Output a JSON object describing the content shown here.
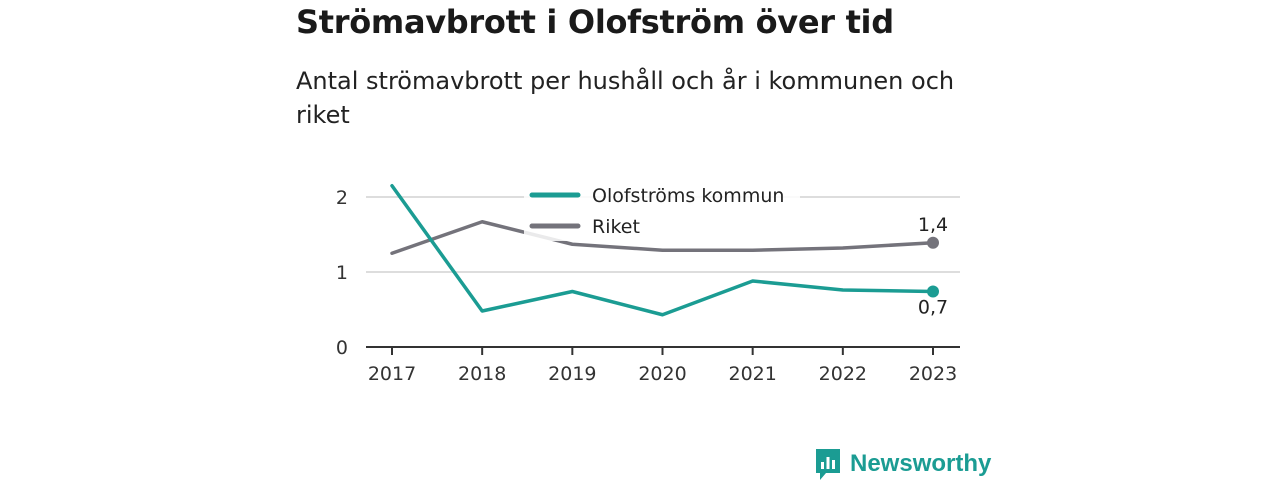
{
  "header": {
    "title": "Strömavbrott i Olofström över tid",
    "subtitle": "Antal strömavbrott per hushåll och år i kommunen och riket"
  },
  "brand": {
    "name": "Newsworthy",
    "icon": "newsworthy-logo-icon",
    "color": "#1b9c93"
  },
  "chart_data": {
    "type": "line",
    "title": "Strömavbrott i Olofström över tid",
    "subtitle": "Antal strömavbrott per hushåll och år i kommunen och riket",
    "xlabel": "",
    "ylabel": "",
    "x": [
      "2017",
      "2018",
      "2019",
      "2020",
      "2021",
      "2022",
      "2023"
    ],
    "y_ticks": [
      "0",
      "1",
      "2"
    ],
    "ylim": [
      0,
      2.2
    ],
    "grid": true,
    "legend_position": "top-center",
    "series": [
      {
        "name": "Olofströms kommun",
        "color": "#1b9c93",
        "values": [
          2.15,
          0.48,
          0.74,
          0.43,
          0.88,
          0.76,
          0.74
        ],
        "end_label": "0,7"
      },
      {
        "name": "Riket",
        "color": "#74737b",
        "values": [
          1.25,
          1.67,
          1.37,
          1.29,
          1.29,
          1.32,
          1.39
        ],
        "end_label": "1,4"
      }
    ]
  }
}
